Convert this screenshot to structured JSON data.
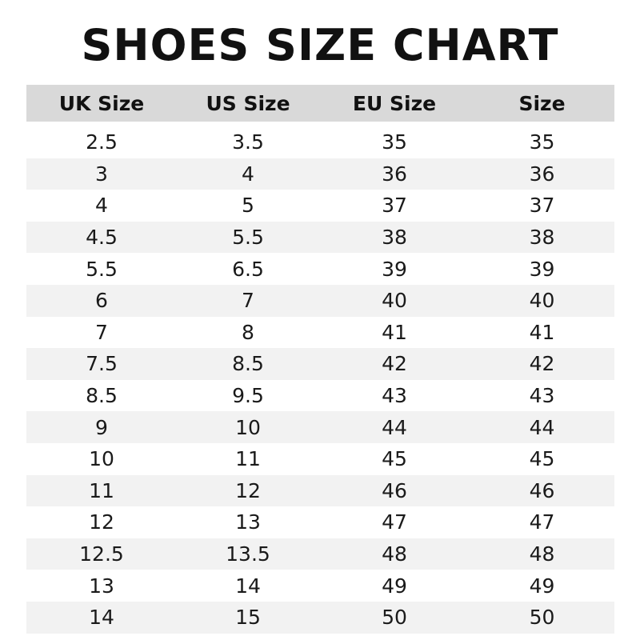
{
  "title": "SHOES SIZE CHART",
  "colors": {
    "header_bg": "#d9d9d9",
    "stripe_bg": "#f2f2f2",
    "text": "#111111"
  },
  "table": {
    "headers": [
      "UK Size",
      "US Size",
      "EU Size",
      "Size"
    ],
    "rows": [
      [
        "2.5",
        "3.5",
        "35",
        "35"
      ],
      [
        "3",
        "4",
        "36",
        "36"
      ],
      [
        "4",
        "5",
        "37",
        "37"
      ],
      [
        "4.5",
        "5.5",
        "38",
        "38"
      ],
      [
        "5.5",
        "6.5",
        "39",
        "39"
      ],
      [
        "6",
        "7",
        "40",
        "40"
      ],
      [
        "7",
        "8",
        "41",
        "41"
      ],
      [
        "7.5",
        "8.5",
        "42",
        "42"
      ],
      [
        "8.5",
        "9.5",
        "43",
        "43"
      ],
      [
        "9",
        "10",
        "44",
        "44"
      ],
      [
        "10",
        "11",
        "45",
        "45"
      ],
      [
        "11",
        "12",
        "46",
        "46"
      ],
      [
        "12",
        "13",
        "47",
        "47"
      ],
      [
        "12.5",
        "13.5",
        "48",
        "48"
      ],
      [
        "13",
        "14",
        "49",
        "49"
      ],
      [
        "14",
        "15",
        "50",
        "50"
      ]
    ]
  }
}
